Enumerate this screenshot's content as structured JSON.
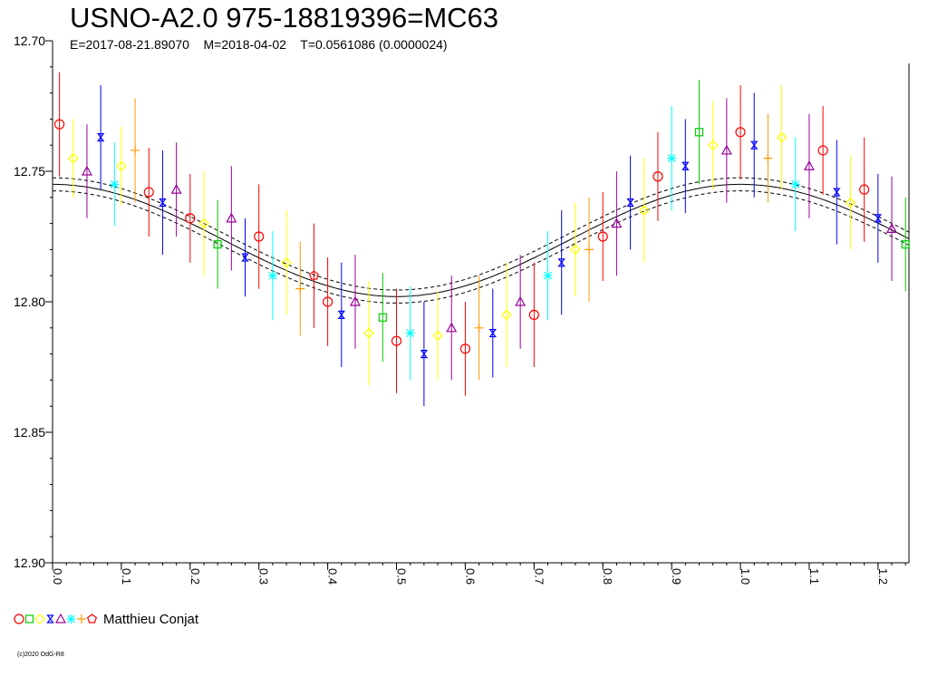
{
  "chart_title": "USNO-A2.0 975-18819396=MC63",
  "chart_subtitle": "E=2017-08-21.89070    M=2018-04-02    T=0.0561086 (0.0000024)",
  "legend_observer": "Matthieu Conjat",
  "copyright": "(c)2020 OdG-R8",
  "colors": {
    "fit": "#000000",
    "axis": "#000000",
    "markers": [
      "#ff0000",
      "#00cc00",
      "#ffff00",
      "#0000ff",
      "#990099",
      "#00ffff",
      "#ff9900",
      "#ff0000"
    ]
  },
  "legend_symbols": [
    "circle",
    "square",
    "diamond",
    "hourglass",
    "triangle",
    "star",
    "cross",
    "pentagon"
  ],
  "chart_data": {
    "type": "scatter",
    "title": "USNO-A2.0 975-18819396=MC63",
    "subtitle": "E=2017-08-21.89070    M=2018-04-02    T=0.0561086 (0.0000024)",
    "xlabel": "",
    "ylabel": "",
    "xlim": [
      0.0,
      1.245
    ],
    "ylim": [
      12.7,
      12.9
    ],
    "y_inverted": true,
    "x_ticks": [
      "0.0",
      "0.1",
      "0.2",
      "0.3",
      "0.4",
      "0.5",
      "0.6",
      "0.7",
      "0.8",
      "0.9",
      "1.0",
      "1.1",
      "1.2"
    ],
    "y_ticks": [
      "12.70",
      "12.75",
      "12.80",
      "12.85",
      "12.90"
    ],
    "grid": false,
    "fit_curve": {
      "mean": 12.7765,
      "amplitude": 0.0215,
      "max_phase": 0.0,
      "band": 0.0025
    },
    "series": [
      {
        "name": "Matthieu Conjat",
        "points": [
          {
            "x": 0.01,
            "y": 12.732,
            "err": 0.02,
            "symbol": "circle"
          },
          {
            "x": 0.03,
            "y": 12.745,
            "err": 0.015,
            "symbol": "diamond"
          },
          {
            "x": 0.05,
            "y": 12.75,
            "err": 0.018,
            "symbol": "triangle"
          },
          {
            "x": 0.07,
            "y": 12.737,
            "err": 0.02,
            "symbol": "hourglass"
          },
          {
            "x": 0.09,
            "y": 12.755,
            "err": 0.016,
            "symbol": "star"
          },
          {
            "x": 0.1,
            "y": 12.748,
            "err": 0.015,
            "symbol": "diamond"
          },
          {
            "x": 0.12,
            "y": 12.742,
            "err": 0.02,
            "symbol": "cross"
          },
          {
            "x": 0.14,
            "y": 12.758,
            "err": 0.017,
            "symbol": "circle"
          },
          {
            "x": 0.16,
            "y": 12.762,
            "err": 0.02,
            "symbol": "hourglass"
          },
          {
            "x": 0.18,
            "y": 12.757,
            "err": 0.018,
            "symbol": "triangle"
          },
          {
            "x": 0.2,
            "y": 12.768,
            "err": 0.017,
            "symbol": "circle"
          },
          {
            "x": 0.22,
            "y": 12.77,
            "err": 0.02,
            "symbol": "diamond"
          },
          {
            "x": 0.24,
            "y": 12.778,
            "err": 0.017,
            "symbol": "square"
          },
          {
            "x": 0.26,
            "y": 12.768,
            "err": 0.02,
            "symbol": "triangle"
          },
          {
            "x": 0.28,
            "y": 12.783,
            "err": 0.015,
            "symbol": "hourglass"
          },
          {
            "x": 0.3,
            "y": 12.775,
            "err": 0.02,
            "symbol": "circle"
          },
          {
            "x": 0.32,
            "y": 12.79,
            "err": 0.017,
            "symbol": "star"
          },
          {
            "x": 0.34,
            "y": 12.785,
            "err": 0.02,
            "symbol": "diamond"
          },
          {
            "x": 0.36,
            "y": 12.795,
            "err": 0.018,
            "symbol": "cross"
          },
          {
            "x": 0.38,
            "y": 12.79,
            "err": 0.02,
            "symbol": "pentagon"
          },
          {
            "x": 0.4,
            "y": 12.8,
            "err": 0.017,
            "symbol": "circle"
          },
          {
            "x": 0.42,
            "y": 12.805,
            "err": 0.02,
            "symbol": "hourglass"
          },
          {
            "x": 0.44,
            "y": 12.8,
            "err": 0.018,
            "symbol": "triangle"
          },
          {
            "x": 0.46,
            "y": 12.812,
            "err": 0.02,
            "symbol": "diamond"
          },
          {
            "x": 0.48,
            "y": 12.806,
            "err": 0.017,
            "symbol": "square"
          },
          {
            "x": 0.5,
            "y": 12.815,
            "err": 0.02,
            "symbol": "circle"
          },
          {
            "x": 0.52,
            "y": 12.812,
            "err": 0.018,
            "symbol": "star"
          },
          {
            "x": 0.54,
            "y": 12.82,
            "err": 0.02,
            "symbol": "hourglass"
          },
          {
            "x": 0.56,
            "y": 12.813,
            "err": 0.017,
            "symbol": "diamond"
          },
          {
            "x": 0.58,
            "y": 12.81,
            "err": 0.02,
            "symbol": "triangle"
          },
          {
            "x": 0.6,
            "y": 12.818,
            "err": 0.018,
            "symbol": "circle"
          },
          {
            "x": 0.62,
            "y": 12.81,
            "err": 0.02,
            "symbol": "cross"
          },
          {
            "x": 0.64,
            "y": 12.812,
            "err": 0.017,
            "symbol": "hourglass"
          },
          {
            "x": 0.66,
            "y": 12.805,
            "err": 0.02,
            "symbol": "diamond"
          },
          {
            "x": 0.68,
            "y": 12.8,
            "err": 0.018,
            "symbol": "triangle"
          },
          {
            "x": 0.7,
            "y": 12.805,
            "err": 0.02,
            "symbol": "circle"
          },
          {
            "x": 0.72,
            "y": 12.79,
            "err": 0.017,
            "symbol": "star"
          },
          {
            "x": 0.74,
            "y": 12.785,
            "err": 0.02,
            "symbol": "hourglass"
          },
          {
            "x": 0.76,
            "y": 12.78,
            "err": 0.018,
            "symbol": "diamond"
          },
          {
            "x": 0.78,
            "y": 12.78,
            "err": 0.02,
            "symbol": "cross"
          },
          {
            "x": 0.8,
            "y": 12.775,
            "err": 0.017,
            "symbol": "circle"
          },
          {
            "x": 0.82,
            "y": 12.77,
            "err": 0.02,
            "symbol": "triangle"
          },
          {
            "x": 0.84,
            "y": 12.762,
            "err": 0.018,
            "symbol": "hourglass"
          },
          {
            "x": 0.86,
            "y": 12.765,
            "err": 0.02,
            "symbol": "diamond"
          },
          {
            "x": 0.88,
            "y": 12.752,
            "err": 0.017,
            "symbol": "circle"
          },
          {
            "x": 0.9,
            "y": 12.745,
            "err": 0.02,
            "symbol": "star"
          },
          {
            "x": 0.92,
            "y": 12.748,
            "err": 0.018,
            "symbol": "hourglass"
          },
          {
            "x": 0.94,
            "y": 12.735,
            "err": 0.02,
            "symbol": "square"
          },
          {
            "x": 0.96,
            "y": 12.74,
            "err": 0.017,
            "symbol": "diamond"
          },
          {
            "x": 0.98,
            "y": 12.742,
            "err": 0.02,
            "symbol": "triangle"
          },
          {
            "x": 1.0,
            "y": 12.735,
            "err": 0.018,
            "symbol": "circle"
          },
          {
            "x": 1.02,
            "y": 12.74,
            "err": 0.02,
            "symbol": "hourglass"
          },
          {
            "x": 1.04,
            "y": 12.745,
            "err": 0.017,
            "symbol": "cross"
          },
          {
            "x": 1.06,
            "y": 12.737,
            "err": 0.02,
            "symbol": "diamond"
          },
          {
            "x": 1.08,
            "y": 12.755,
            "err": 0.018,
            "symbol": "star"
          },
          {
            "x": 1.1,
            "y": 12.748,
            "err": 0.02,
            "symbol": "triangle"
          },
          {
            "x": 1.12,
            "y": 12.742,
            "err": 0.017,
            "symbol": "circle"
          },
          {
            "x": 1.14,
            "y": 12.758,
            "err": 0.02,
            "symbol": "hourglass"
          },
          {
            "x": 1.16,
            "y": 12.762,
            "err": 0.018,
            "symbol": "diamond"
          },
          {
            "x": 1.18,
            "y": 12.757,
            "err": 0.02,
            "symbol": "circle"
          },
          {
            "x": 1.2,
            "y": 12.768,
            "err": 0.017,
            "symbol": "hourglass"
          },
          {
            "x": 1.22,
            "y": 12.772,
            "err": 0.02,
            "symbol": "triangle"
          },
          {
            "x": 1.24,
            "y": 12.778,
            "err": 0.018,
            "symbol": "square"
          }
        ]
      }
    ]
  }
}
